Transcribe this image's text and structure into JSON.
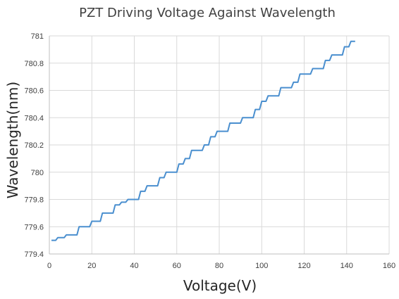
{
  "chart_data": {
    "type": "line",
    "title": "PZT Driving Voltage Against Wavelength",
    "xlabel": "Voltage(V)",
    "ylabel": "Wavelength(nm)",
    "xlim": [
      0,
      160
    ],
    "ylim": [
      779.4,
      781
    ],
    "x_ticks": [
      "0",
      "20",
      "40",
      "60",
      "80",
      "100",
      "120",
      "140",
      "160"
    ],
    "y_ticks": [
      "779.4",
      "779.6",
      "779.8",
      "780",
      "780.2",
      "780.4",
      "780.6",
      "780.8",
      "781"
    ],
    "grid": true,
    "legend": "none",
    "series": [
      {
        "color": "#4a8fcf",
        "x": [
          1,
          3,
          4,
          7,
          8,
          10,
          11,
          13,
          14,
          16,
          17,
          19,
          20,
          21,
          22,
          24,
          25,
          27,
          28,
          30,
          31,
          33,
          34,
          36,
          37,
          39,
          40,
          42,
          43,
          45,
          46,
          48,
          49,
          51,
          52,
          54,
          55,
          57,
          58,
          60,
          61,
          63,
          64,
          66,
          67,
          69,
          70,
          72,
          73,
          75,
          76,
          78,
          79,
          81,
          82,
          84,
          85,
          87,
          88,
          90,
          91,
          93,
          94,
          96,
          97,
          99,
          100,
          102,
          103,
          105,
          106,
          108,
          109,
          111,
          112,
          114,
          115,
          117,
          118,
          120,
          121,
          123,
          124,
          126,
          127,
          129,
          130,
          132,
          133,
          135,
          136,
          138,
          139,
          141,
          142,
          144
        ],
        "y": [
          779.5,
          779.5,
          779.52,
          779.52,
          779.54,
          779.54,
          779.54,
          779.54,
          779.6,
          779.6,
          779.6,
          779.6,
          779.64,
          779.64,
          779.64,
          779.64,
          779.7,
          779.7,
          779.7,
          779.7,
          779.76,
          779.76,
          779.78,
          779.78,
          779.8,
          779.8,
          779.8,
          779.8,
          779.86,
          779.86,
          779.9,
          779.9,
          779.9,
          779.9,
          779.96,
          779.96,
          780,
          780,
          780,
          780,
          780.06,
          780.06,
          780.1,
          780.1,
          780.16,
          780.16,
          780.16,
          780.16,
          780.2,
          780.2,
          780.26,
          780.26,
          780.3,
          780.3,
          780.3,
          780.3,
          780.36,
          780.36,
          780.36,
          780.36,
          780.4,
          780.4,
          780.4,
          780.4,
          780.46,
          780.46,
          780.52,
          780.52,
          780.56,
          780.56,
          780.56,
          780.56,
          780.62,
          780.62,
          780.62,
          780.62,
          780.66,
          780.66,
          780.72,
          780.72,
          780.72,
          780.72,
          780.76,
          780.76,
          780.76,
          780.76,
          780.82,
          780.82,
          780.86,
          780.86,
          780.86,
          780.86,
          780.92,
          780.92,
          780.96,
          780.96
        ]
      }
    ]
  }
}
